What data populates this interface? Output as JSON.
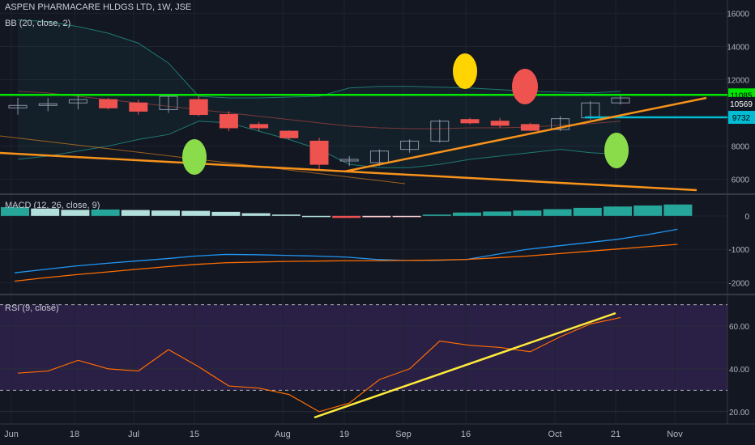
{
  "chart_data": {
    "type": "candlestick",
    "title": "ASPEN PHARMACARE HLDGS LTD, 1W, JSE",
    "colors": {
      "background": "#131722",
      "up": "#26a69a",
      "down": "#ef5350",
      "support_line": "#00e600",
      "trend_line": "#f7931a",
      "rsi_trend": "#ffeb3b",
      "price_marker": "#00bcd4",
      "macd_line": "#2196f3",
      "signal_line": "#ff6d00",
      "rsi_band": "#2a1f45"
    },
    "x_axis": {
      "labels": [
        "Jun",
        "18",
        "Jul",
        "15",
        "Aug",
        "19",
        "Sep",
        "16",
        "Oct",
        "21",
        "Nov"
      ]
    },
    "price_pane": {
      "indicator_label": "BB (20, close, 2)",
      "axis_ticks": [
        6000,
        8000,
        12000,
        14000,
        16000
      ],
      "ylim": [
        5200,
        16800
      ],
      "candles": [
        {
          "o": 10300,
          "h": 10900,
          "l": 9900,
          "c": 10450
        },
        {
          "o": 10450,
          "h": 10900,
          "l": 10100,
          "c": 10550
        },
        {
          "o": 10600,
          "h": 11100,
          "l": 10200,
          "c": 10800
        },
        {
          "o": 10800,
          "h": 10900,
          "l": 10200,
          "c": 10300
        },
        {
          "o": 10600,
          "h": 10800,
          "l": 9900,
          "c": 10100
        },
        {
          "o": 10200,
          "h": 11100,
          "l": 10000,
          "c": 11000
        },
        {
          "o": 10800,
          "h": 11100,
          "l": 9800,
          "c": 9900
        },
        {
          "o": 9900,
          "h": 10100,
          "l": 8900,
          "c": 9100
        },
        {
          "o": 9300,
          "h": 9450,
          "l": 8900,
          "c": 9100
        },
        {
          "o": 8900,
          "h": 8950,
          "l": 8400,
          "c": 8500
        },
        {
          "o": 8300,
          "h": 8500,
          "l": 6600,
          "c": 6900
        },
        {
          "o": 7100,
          "h": 7400,
          "l": 6800,
          "c": 7200
        },
        {
          "o": 7000,
          "h": 7800,
          "l": 6800,
          "c": 7700
        },
        {
          "o": 7800,
          "h": 8400,
          "l": 7600,
          "c": 8300
        },
        {
          "o": 8300,
          "h": 9600,
          "l": 8200,
          "c": 9500
        },
        {
          "o": 9600,
          "h": 9700,
          "l": 9300,
          "c": 9400
        },
        {
          "o": 9500,
          "h": 9700,
          "l": 9100,
          "c": 9250
        },
        {
          "o": 9300,
          "h": 9400,
          "l": 8900,
          "c": 8950
        },
        {
          "o": 9000,
          "h": 9800,
          "l": 8900,
          "c": 9650
        },
        {
          "o": 9700,
          "h": 10700,
          "l": 9600,
          "c": 10600
        },
        {
          "o": 10600,
          "h": 11100,
          "l": 10500,
          "c": 10900
        }
      ],
      "bb_upper": [
        15600,
        15500,
        15200,
        14800,
        14200,
        13000,
        11000,
        10900,
        10900,
        10950,
        11000,
        11500,
        11600,
        11600,
        11550,
        11500,
        11400,
        11300,
        11250,
        11200,
        11300
      ],
      "bb_middle": [
        11300,
        11200,
        11000,
        10800,
        10600,
        10400,
        10200,
        10000,
        9800,
        9600,
        9400,
        9200,
        9100,
        9050,
        9050,
        9100,
        9100,
        9150,
        9250,
        9350,
        9500
      ],
      "bb_lower": [
        7200,
        7400,
        7700,
        8000,
        8400,
        8700,
        9500,
        9400,
        8900,
        8400,
        7800,
        6900,
        6700,
        6700,
        6900,
        7200,
        7400,
        7600,
        7800,
        7600,
        7500
      ],
      "horizontal_lines": [
        {
          "value": 11085,
          "label": "11085"
        }
      ],
      "price_labels": [
        {
          "value": 10569,
          "label": "10569"
        },
        {
          "value": 9732,
          "label": "9732"
        }
      ]
    },
    "macd_pane": {
      "indicator_label": "MACD (12, 26, close, 9)",
      "axis_ticks": [
        0,
        -1000,
        -2000
      ],
      "ylim": [
        -2300,
        600
      ],
      "histogram": [
        260,
        220,
        180,
        190,
        175,
        160,
        150,
        120,
        80,
        40,
        0,
        -60,
        -40,
        -20,
        40,
        100,
        130,
        160,
        200,
        240,
        280,
        310,
        340
      ],
      "macd": [
        -1700,
        -1600,
        -1500,
        -1420,
        -1350,
        -1280,
        -1200,
        -1150,
        -1160,
        -1180,
        -1200,
        -1230,
        -1300,
        -1330,
        -1330,
        -1300,
        -1150,
        -1000,
        -900,
        -800,
        -700,
        -560,
        -400
      ],
      "signal": [
        -1950,
        -1850,
        -1760,
        -1680,
        -1600,
        -1520,
        -1450,
        -1400,
        -1380,
        -1360,
        -1350,
        -1340,
        -1340,
        -1330,
        -1320,
        -1300,
        -1250,
        -1200,
        -1130,
        -1060,
        -990,
        -920,
        -850
      ]
    },
    "rsi_pane": {
      "indicator_label": "RSI (9, close)",
      "axis_ticks": [
        20,
        40,
        60
      ],
      "ylim": [
        15,
        74
      ],
      "levels": [
        30,
        70
      ],
      "values": [
        38,
        39,
        44,
        40,
        39,
        49,
        41,
        32,
        31,
        28,
        20,
        24,
        35,
        40,
        53,
        51,
        50,
        48,
        55,
        61,
        64
      ]
    }
  }
}
